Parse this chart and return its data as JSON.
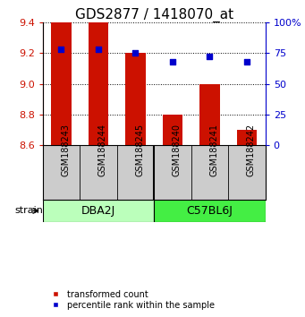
{
  "title": "GDS2877 / 1418070_at",
  "samples": [
    "GSM188243",
    "GSM188244",
    "GSM188245",
    "GSM188240",
    "GSM188241",
    "GSM188242"
  ],
  "bar_values": [
    9.41,
    9.4,
    9.2,
    8.8,
    9.0,
    8.7
  ],
  "percentile_values": [
    78,
    78,
    75,
    68,
    72,
    68
  ],
  "bar_color": "#cc1100",
  "dot_color": "#0000cc",
  "ylim_left": [
    8.6,
    9.4
  ],
  "ylim_right": [
    0,
    100
  ],
  "yticks_left": [
    8.6,
    8.8,
    9.0,
    9.2,
    9.4
  ],
  "yticks_right": [
    0,
    25,
    50,
    75,
    100
  ],
  "ytick_labels_right": [
    "0",
    "25",
    "50",
    "75",
    "100%"
  ],
  "groups": [
    {
      "label": "DBA2J",
      "indices": [
        0,
        1,
        2
      ],
      "color": "#bbffbb"
    },
    {
      "label": "C57BL6J",
      "indices": [
        3,
        4,
        5
      ],
      "color": "#44ee44"
    }
  ],
  "strain_label": "strain",
  "legend_items": [
    {
      "color": "#cc1100",
      "label": "transformed count"
    },
    {
      "color": "#0000cc",
      "label": "percentile rank within the sample"
    }
  ],
  "bar_width": 0.55,
  "bar_baseline": 8.6,
  "background_color": "#ffffff",
  "label_area_color": "#cccccc",
  "title_fontsize": 11
}
